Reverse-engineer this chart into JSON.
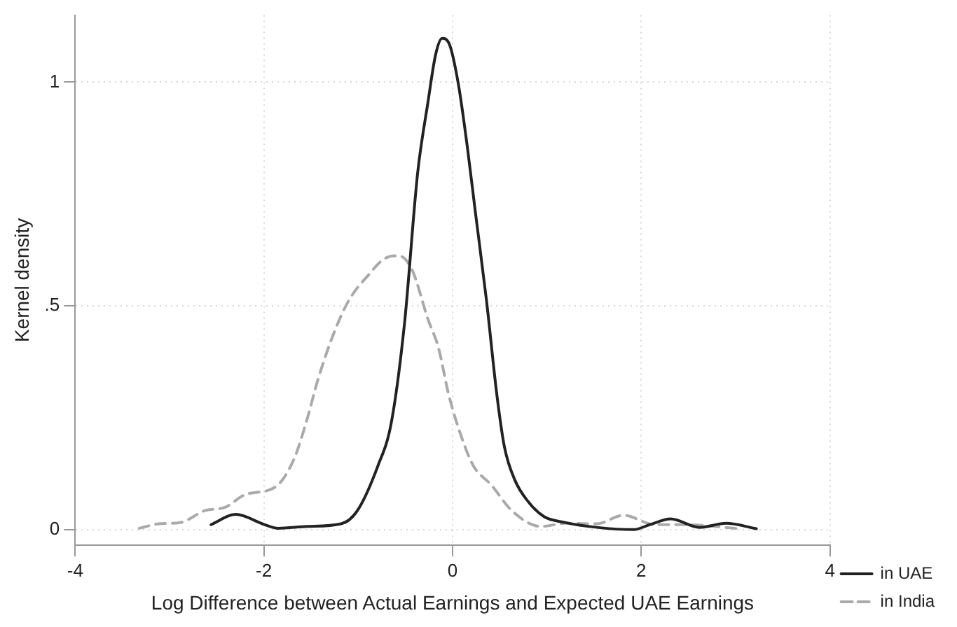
{
  "chart_data": {
    "type": "line",
    "xlabel": "Log Difference between Actual Earnings and Expected UAE Earnings",
    "ylabel": "Kernel density",
    "xlim": [
      -4,
      4
    ],
    "xticks": [
      -4,
      -2,
      0,
      2,
      4
    ],
    "ylim": [
      -0.035,
      1.15
    ],
    "yticks": [
      0,
      {
        "value": 0.5,
        "label": ".5"
      },
      1
    ],
    "grid": true,
    "legend": "right",
    "marker": "none",
    "series": [
      {
        "name": "in UAE",
        "color": "#222222",
        "line_style": "solid",
        "x": [
          -2.56,
          -2.3,
          -1.99,
          -1.85,
          -1.54,
          -1.18,
          -1.01,
          -0.79,
          -0.65,
          -0.51,
          -0.37,
          -0.26,
          -0.18,
          -0.11,
          -0.04,
          0.06,
          0.16,
          0.24,
          0.36,
          0.47,
          0.55,
          0.66,
          0.8,
          0.97,
          1.19,
          1.53,
          1.92,
          2.09,
          2.31,
          2.62,
          2.9,
          3.22
        ],
        "values": [
          0.011,
          0.034,
          0.011,
          0.003,
          0.007,
          0.013,
          0.042,
          0.143,
          0.238,
          0.459,
          0.797,
          0.956,
          1.061,
          1.098,
          1.088,
          0.998,
          0.85,
          0.713,
          0.512,
          0.301,
          0.185,
          0.111,
          0.063,
          0.029,
          0.016,
          0.005,
          0,
          0.011,
          0.024,
          0.005,
          0.014,
          0.002
        ]
      },
      {
        "name": "in India",
        "color": "#aaaaaa",
        "line_style": "dashed",
        "x": [
          -3.32,
          -3.11,
          -2.88,
          -2.63,
          -2.41,
          -2.19,
          -1.88,
          -1.68,
          -1.54,
          -1.43,
          -1.26,
          -1.1,
          -0.9,
          -0.71,
          -0.57,
          -0.43,
          -0.26,
          -0.15,
          -0.04,
          0.08,
          0.22,
          0.41,
          0.63,
          0.94,
          1.19,
          1.53,
          1.81,
          2.15,
          2.48,
          3.04
        ],
        "values": [
          0.003,
          0.013,
          0.016,
          0.042,
          0.05,
          0.079,
          0.095,
          0.158,
          0.248,
          0.333,
          0.438,
          0.512,
          0.567,
          0.607,
          0.612,
          0.581,
          0.47,
          0.407,
          0.301,
          0.216,
          0.143,
          0.1,
          0.042,
          0.007,
          0.014,
          0.013,
          0.032,
          0.011,
          0.011,
          0.002
        ]
      }
    ]
  }
}
